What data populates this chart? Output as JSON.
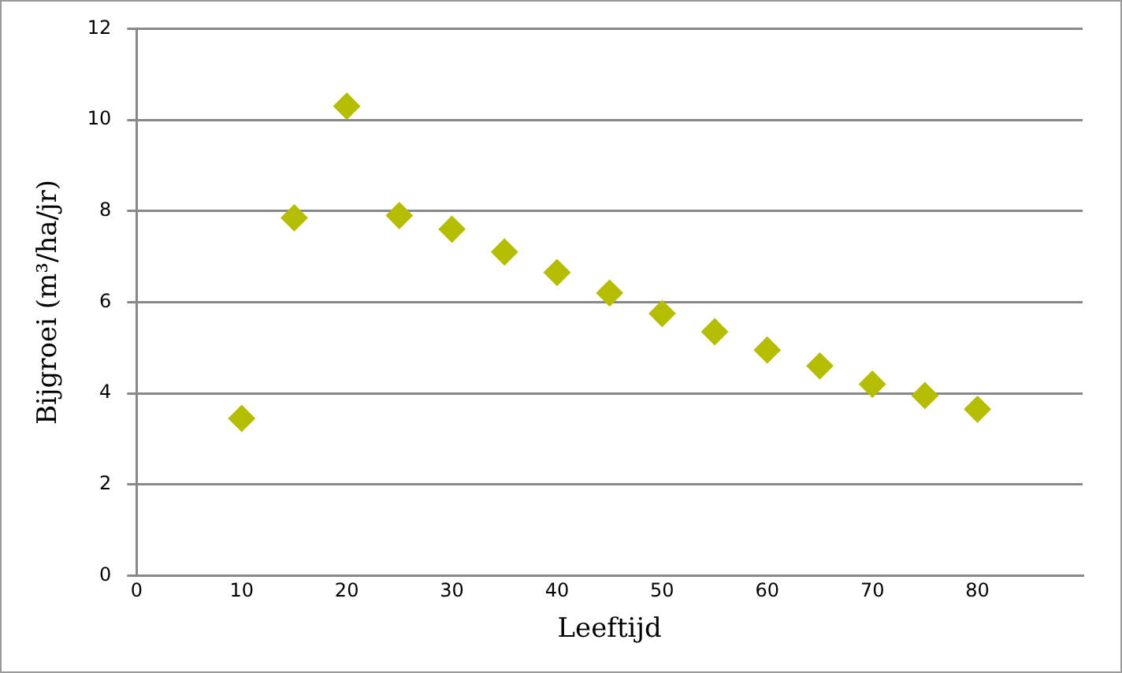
{
  "chart_data": {
    "type": "scatter",
    "xlabel": "Leeftijd",
    "ylabel": "Bijgroei (m³/ha/jr)",
    "x": [
      10,
      15,
      20,
      25,
      30,
      35,
      40,
      45,
      50,
      55,
      60,
      65,
      70,
      75,
      80
    ],
    "series": [
      {
        "color": "#b5bd00",
        "values": [
          3.45,
          7.85,
          10.3,
          7.9,
          7.6,
          7.1,
          6.65,
          6.2,
          5.75,
          5.35,
          4.95,
          4.6,
          4.2,
          3.95,
          3.65
        ]
      }
    ],
    "xlim": [
      0,
      90
    ],
    "xticks": [
      0,
      10,
      20,
      30,
      40,
      50,
      60,
      70,
      80
    ],
    "ylim": [
      0,
      12
    ],
    "yticks": [
      0,
      2,
      4,
      6,
      8,
      10,
      12
    ],
    "grid": "y",
    "legend": false,
    "marker": "diamond"
  }
}
